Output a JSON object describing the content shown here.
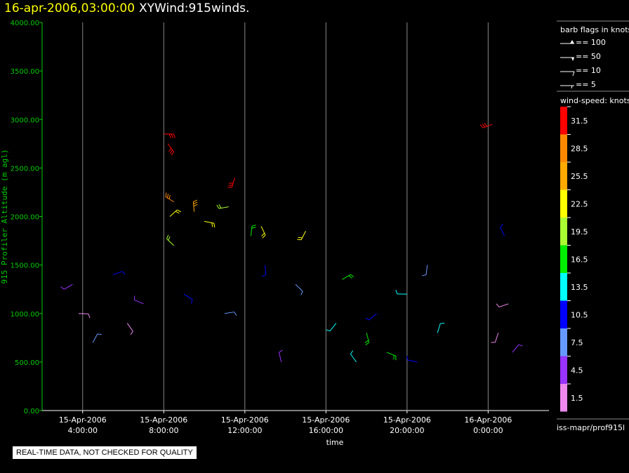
{
  "header": {
    "timestamp": "16-apr-2006,03:00:00",
    "product": "XYWind:915winds."
  },
  "disclaimer": "REAL-TIME DATA, NOT CHECKED FOR QUALITY",
  "legend": {
    "barb_title": "barb flags in knots",
    "barb_items": [
      "== 100",
      "== 50",
      "== 10",
      "== 5"
    ],
    "speed_title": "wind-speed: knots",
    "speed_bins": [
      {
        "label": "31.5",
        "color": "#ff0000"
      },
      {
        "label": "28.5",
        "color": "#ff8800"
      },
      {
        "label": "25.5",
        "color": "#ffaa00"
      },
      {
        "label": "22.5",
        "color": "#ffff00"
      },
      {
        "label": "19.5",
        "color": "#aaff33"
      },
      {
        "label": "16.5",
        "color": "#00ee00"
      },
      {
        "label": "13.5",
        "color": "#00ffff"
      },
      {
        "label": "10.5",
        "color": "#0000ff"
      },
      {
        "label": "7.5",
        "color": "#6699ff"
      },
      {
        "label": "4.5",
        "color": "#9933ff"
      },
      {
        "label": "1.5",
        "color": "#ee88ee"
      }
    ],
    "source": "iss-mapr/prof915l"
  },
  "chart_data": {
    "type": "scatter",
    "ylabel": "915 Profiler Altitude (m agl)",
    "xlabel": "time",
    "ylim": [
      0,
      4000
    ],
    "xlim": [
      "2006-04-15T02:00",
      "2006-04-16T03:00"
    ],
    "yticks": [
      "4000.00",
      "3500.00",
      "3000.00",
      "2500.00",
      "2000.00",
      "1500.00",
      "1000.00",
      "500.00",
      "0.00"
    ],
    "xticks": [
      {
        "date": "15-Apr-2006",
        "time": "4:00:00",
        "hour": 4
      },
      {
        "date": "15-Apr-2006",
        "time": "8:00:00",
        "hour": 8
      },
      {
        "date": "15-Apr-2006",
        "time": "12:00:00",
        "hour": 12
      },
      {
        "date": "15-Apr-2006",
        "time": "16:00:00",
        "hour": 16
      },
      {
        "date": "15-Apr-2006",
        "time": "20:00:00",
        "hour": 20
      },
      {
        "date": "16-Apr-2006",
        "time": "0:00:00",
        "hour": 24
      }
    ],
    "grid": "vertical at x ticks",
    "series": [
      {
        "points": [
          {
            "x": 8.0,
            "y": 2850,
            "spd": 31.5
          },
          {
            "x": 8.2,
            "y": 2750,
            "spd": 31.5
          },
          {
            "x": 11.5,
            "y": 2400,
            "spd": 31.5
          },
          {
            "x": 24.2,
            "y": 2950,
            "spd": 31.5
          },
          {
            "x": 8.5,
            "y": 2150,
            "spd": 28.5
          },
          {
            "x": 9.5,
            "y": 2050,
            "spd": 25.5
          },
          {
            "x": 8.3,
            "y": 2000,
            "spd": 22.5
          },
          {
            "x": 10.0,
            "y": 1950,
            "spd": 22.5
          },
          {
            "x": 12.8,
            "y": 1900,
            "spd": 22.5
          },
          {
            "x": 15.0,
            "y": 1850,
            "spd": 22.5
          },
          {
            "x": 11.2,
            "y": 2100,
            "spd": 19.5
          },
          {
            "x": 8.5,
            "y": 1700,
            "spd": 19.5
          },
          {
            "x": 12.3,
            "y": 1800,
            "spd": 16.5
          },
          {
            "x": 16.8,
            "y": 1350,
            "spd": 16.5
          },
          {
            "x": 19.0,
            "y": 600,
            "spd": 16.5
          },
          {
            "x": 18.0,
            "y": 800,
            "spd": 16.5
          },
          {
            "x": 16.5,
            "y": 900,
            "spd": 13.5
          },
          {
            "x": 20.0,
            "y": 1200,
            "spd": 13.5
          },
          {
            "x": 17.5,
            "y": 500,
            "spd": 13.5
          },
          {
            "x": 21.5,
            "y": 800,
            "spd": 13.5
          },
          {
            "x": 5.5,
            "y": 1400,
            "spd": 10.5
          },
          {
            "x": 9.0,
            "y": 1200,
            "spd": 10.5
          },
          {
            "x": 13.0,
            "y": 1500,
            "spd": 10.5
          },
          {
            "x": 18.5,
            "y": 1000,
            "spd": 10.5
          },
          {
            "x": 20.5,
            "y": 500,
            "spd": 10.5
          },
          {
            "x": 24.8,
            "y": 1800,
            "spd": 10.5
          },
          {
            "x": 4.5,
            "y": 700,
            "spd": 7.5
          },
          {
            "x": 11.0,
            "y": 1000,
            "spd": 7.5
          },
          {
            "x": 14.5,
            "y": 1300,
            "spd": 7.5
          },
          {
            "x": 21.0,
            "y": 1500,
            "spd": 7.5
          },
          {
            "x": 3.5,
            "y": 1300,
            "spd": 4.5
          },
          {
            "x": 7.0,
            "y": 1100,
            "spd": 4.5
          },
          {
            "x": 13.8,
            "y": 500,
            "spd": 4.5
          },
          {
            "x": 25.2,
            "y": 600,
            "spd": 4.5
          },
          {
            "x": 3.8,
            "y": 1000,
            "spd": 1.5
          },
          {
            "x": 6.2,
            "y": 900,
            "spd": 1.5
          },
          {
            "x": 24.5,
            "y": 800,
            "spd": 1.5
          },
          {
            "x": 25.0,
            "y": 1100,
            "spd": 1.5
          }
        ]
      }
    ]
  }
}
